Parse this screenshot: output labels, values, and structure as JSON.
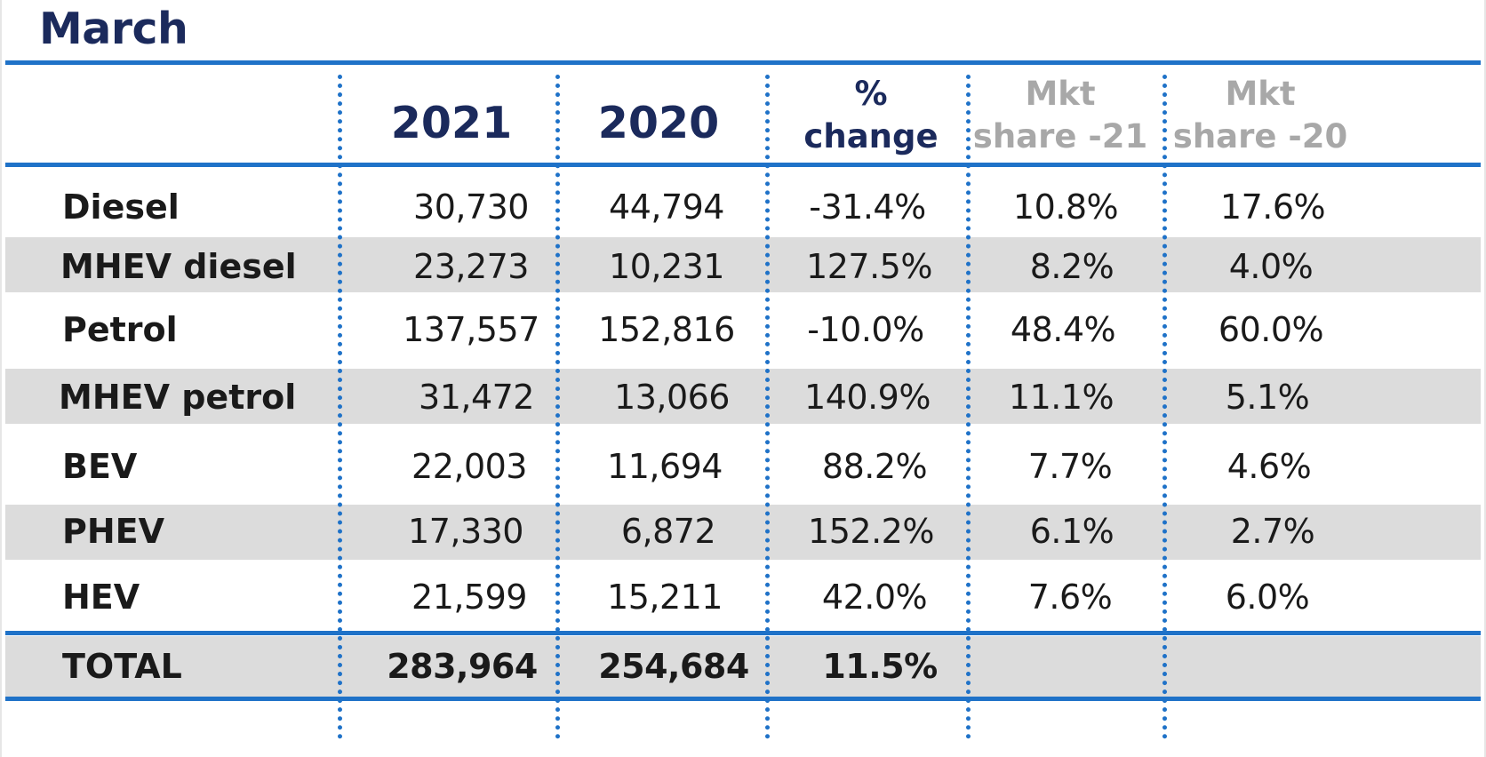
{
  "title": "March",
  "columns": {
    "year_2021": "2021",
    "year_2020": "2020",
    "pct_change_line1": "%",
    "pct_change_line2": "change",
    "mkt21_line1": "Mkt",
    "mkt21_line2": "share -21",
    "mkt20_line1": "Mkt",
    "mkt20_line2": "share -20"
  },
  "rows": [
    {
      "label": "Diesel",
      "y2021": "30,730",
      "y2020": "44,794",
      "change": "-31.4%",
      "share21": "10.8%",
      "share20": "17.6%"
    },
    {
      "label": "MHEV diesel",
      "y2021": "23,273",
      "y2020": "10,231",
      "change": "127.5%",
      "share21": "8.2%",
      "share20": "4.0%"
    },
    {
      "label": "Petrol",
      "y2021": "137,557",
      "y2020": "152,816",
      "change": "-10.0%",
      "share21": "48.4%",
      "share20": "60.0%"
    },
    {
      "label": "MHEV petrol",
      "y2021": "31,472",
      "y2020": "13,066",
      "change": "140.9%",
      "share21": "11.1%",
      "share20": "5.1%"
    },
    {
      "label": "BEV",
      "y2021": "22,003",
      "y2020": "11,694",
      "change": "88.2%",
      "share21": "7.7%",
      "share20": "4.6%"
    },
    {
      "label": "PHEV",
      "y2021": "17,330",
      "y2020": "6,872",
      "change": "152.2%",
      "share21": "6.1%",
      "share20": "2.7%"
    },
    {
      "label": "HEV",
      "y2021": "21,599",
      "y2020": "15,211",
      "change": "42.0%",
      "share21": "7.6%",
      "share20": "6.0%"
    }
  ],
  "total": {
    "label": "TOTAL",
    "y2021": "283,964",
    "y2020": "254,684",
    "change": "11.5%"
  },
  "colors": {
    "accent": "#1f72c8",
    "heading": "#1b2a5c",
    "shade": "#dcdcdc",
    "muted_header": "#a8a8a8"
  }
}
